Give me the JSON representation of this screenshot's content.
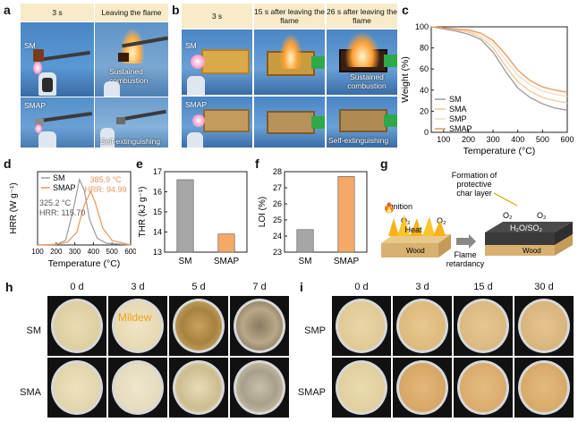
{
  "panels": {
    "a": {
      "letter": "a",
      "headers": [
        "3 s",
        "Leaving the flame"
      ],
      "row_labels": [
        "SM",
        "SMAP"
      ],
      "captions": [
        "Sustained combustion",
        "Self-extinguishing"
      ]
    },
    "b": {
      "letter": "b",
      "headers": [
        "3 s",
        "15 s after leaving the flame",
        "26 s after leaving the flame"
      ],
      "row_labels": [
        "SM",
        "SMAP"
      ],
      "captions": [
        "Sustained combustion",
        "Self-extinguishing"
      ]
    },
    "c": {
      "letter": "c"
    },
    "d": {
      "letter": "d",
      "annotations": [
        "385.9 °C",
        "HRR: 94.99",
        "325.2 °C",
        "HRR: 115.70"
      ]
    },
    "e": {
      "letter": "e"
    },
    "f": {
      "letter": "f"
    },
    "g": {
      "letter": "g",
      "texts": {
        "ignition": "Ignition",
        "formation": "Formation of protective char layer",
        "heat": "Heat",
        "wood1": "Wood",
        "wood2": "Wood",
        "flame": "Flame retardancy",
        "h2o": "H₂O/SO₂",
        "o2": "O₂"
      }
    },
    "h": {
      "letter": "h",
      "days": [
        "0 d",
        "3 d",
        "5 d",
        "7 d"
      ],
      "rows": [
        "SM",
        "SMA"
      ],
      "mildew": "Mildew"
    },
    "i": {
      "letter": "i",
      "days": [
        "0 d",
        "3 d",
        "15 d",
        "30 d"
      ],
      "rows": [
        "SMP",
        "SMAP"
      ]
    }
  },
  "chart_data": [
    {
      "type": "line",
      "id": "c",
      "xlabel": "Temperature (°C)",
      "ylabel": "Weight (%)",
      "xlim": [
        50,
        600
      ],
      "ylim": [
        0,
        100
      ],
      "xticks": [
        100,
        200,
        300,
        400,
        500,
        600
      ],
      "yticks": [
        0,
        20,
        40,
        60,
        80,
        100
      ],
      "series": [
        {
          "name": "SM",
          "color": "#9a9a9a",
          "x": [
            50,
            100,
            150,
            200,
            250,
            300,
            350,
            400,
            450,
            500,
            550,
            600
          ],
          "y": [
            100,
            98,
            96,
            93,
            88,
            76,
            58,
            42,
            33,
            27,
            23,
            21
          ]
        },
        {
          "name": "SMA",
          "color": "#f2c79a",
          "x": [
            50,
            100,
            150,
            200,
            250,
            300,
            350,
            400,
            450,
            500,
            550,
            600
          ],
          "y": [
            100,
            99,
            97,
            95,
            90,
            80,
            63,
            48,
            39,
            33,
            30,
            28
          ]
        },
        {
          "name": "SMP",
          "color": "#f9dcbf",
          "x": [
            50,
            100,
            150,
            200,
            250,
            300,
            350,
            400,
            450,
            500,
            550,
            600
          ],
          "y": [
            100,
            99,
            98,
            96,
            92,
            84,
            69,
            54,
            45,
            39,
            36,
            34
          ]
        },
        {
          "name": "SMAP",
          "color": "#e9955a",
          "x": [
            50,
            100,
            150,
            200,
            250,
            300,
            350,
            400,
            450,
            500,
            550,
            600
          ],
          "y": [
            100,
            99,
            98,
            97,
            94,
            87,
            74,
            59,
            49,
            43,
            40,
            38
          ]
        }
      ]
    },
    {
      "type": "line",
      "id": "d",
      "xlabel": "Temperature (°C)",
      "ylabel": "HRR (W g⁻¹)",
      "xlim": [
        100,
        600
      ],
      "ylim": [
        0,
        130
      ],
      "xticks": [
        100,
        200,
        300,
        400,
        500,
        600
      ],
      "series": [
        {
          "name": "SM",
          "color": "#9a9a9a",
          "x": [
            100,
            200,
            250,
            290,
            325,
            350,
            380,
            420,
            470,
            600
          ],
          "y": [
            0,
            1,
            8,
            60,
            116,
            98,
            45,
            12,
            3,
            0
          ]
        },
        {
          "name": "SMAP",
          "color": "#e9955a",
          "x": [
            100,
            200,
            260,
            310,
            350,
            386,
            410,
            450,
            500,
            600
          ],
          "y": [
            0,
            1,
            5,
            22,
            70,
            95,
            75,
            30,
            8,
            0
          ]
        }
      ]
    },
    {
      "type": "bar",
      "id": "e",
      "categories": [
        "SM",
        "SMAP"
      ],
      "values": [
        16.6,
        13.9
      ],
      "colors": [
        "#a6a6a6",
        "#f4a968"
      ],
      "ylabel": "THR (kJ g⁻¹)",
      "ylim": [
        13,
        17
      ],
      "yticks": [
        13,
        14,
        15,
        16,
        17
      ]
    },
    {
      "type": "bar",
      "id": "f",
      "categories": [
        "SM",
        "SMAP"
      ],
      "values": [
        24.4,
        27.7
      ],
      "colors": [
        "#a6a6a6",
        "#f4a968"
      ],
      "ylabel": "LOI (%)",
      "ylim": [
        23,
        28
      ],
      "yticks": [
        23,
        24,
        25,
        26,
        27,
        28
      ]
    }
  ]
}
